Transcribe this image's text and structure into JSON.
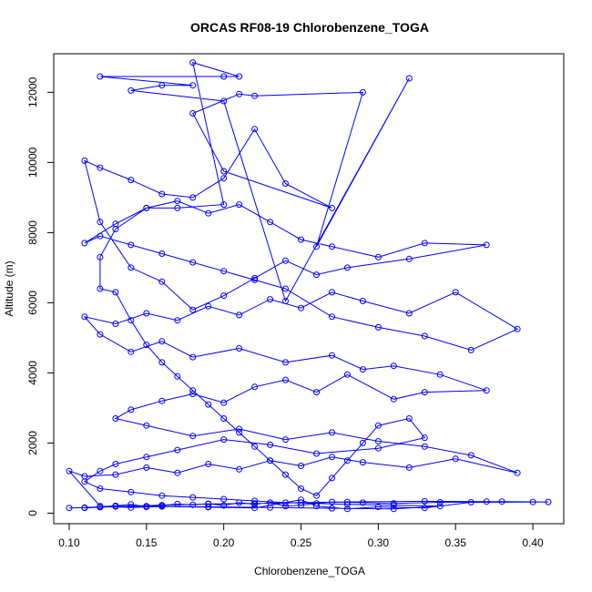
{
  "chart_data": {
    "type": "line",
    "title": "ORCAS RF08-19 Chlorobenzene_TOGA",
    "xlabel": "Chlorobenzene_TOGA",
    "ylabel": "Altitude (m)",
    "xlim": [
      0.09,
      0.42
    ],
    "ylim": [
      -300,
      13100
    ],
    "xticks": [
      "0.10",
      "0.15",
      "0.20",
      "0.25",
      "0.30",
      "0.35",
      "0.40"
    ],
    "yticks": [
      "0",
      "2000",
      "4000",
      "6000",
      "8000",
      "10000",
      "12000"
    ],
    "grid": false,
    "series_color": "#0000ff",
    "marker": "open-circle",
    "series": [
      {
        "points": [
          [
            0.1,
            150
          ],
          [
            0.11,
            160
          ],
          [
            0.12,
            180
          ],
          [
            0.13,
            210
          ],
          [
            0.14,
            250
          ],
          [
            0.15,
            180
          ],
          [
            0.16,
            220
          ],
          [
            0.17,
            260
          ],
          [
            0.18,
            240
          ],
          [
            0.19,
            270
          ],
          [
            0.2,
            220
          ],
          [
            0.21,
            300
          ],
          [
            0.22,
            250
          ],
          [
            0.23,
            300
          ],
          [
            0.24,
            200
          ],
          [
            0.25,
            230
          ],
          [
            0.27,
            320
          ],
          [
            0.29,
            300
          ],
          [
            0.31,
            280
          ],
          [
            0.34,
            310
          ],
          [
            0.38,
            330
          ],
          [
            0.41,
            320
          ],
          [
            0.36,
            310
          ],
          [
            0.33,
            150
          ],
          [
            0.3,
            180
          ],
          [
            0.28,
            120
          ],
          [
            0.26,
            200
          ],
          [
            0.25,
            380
          ],
          [
            0.22,
            150
          ],
          [
            0.19,
            170
          ],
          [
            0.16,
            190
          ],
          [
            0.14,
            160
          ],
          [
            0.12,
            200
          ],
          [
            0.1,
            1200
          ],
          [
            0.11,
            1050
          ],
          [
            0.13,
            1100
          ],
          [
            0.15,
            1300
          ],
          [
            0.17,
            1150
          ],
          [
            0.19,
            1400
          ],
          [
            0.21,
            1250
          ],
          [
            0.23,
            1500
          ],
          [
            0.25,
            1350
          ],
          [
            0.27,
            1600
          ],
          [
            0.29,
            1450
          ],
          [
            0.32,
            1300
          ],
          [
            0.35,
            1550
          ],
          [
            0.39,
            1150
          ],
          [
            0.36,
            1650
          ],
          [
            0.33,
            1900
          ],
          [
            0.3,
            2050
          ],
          [
            0.27,
            2300
          ],
          [
            0.24,
            2100
          ],
          [
            0.21,
            2400
          ],
          [
            0.18,
            2200
          ],
          [
            0.15,
            2500
          ],
          [
            0.13,
            2700
          ],
          [
            0.14,
            2950
          ],
          [
            0.16,
            3200
          ],
          [
            0.18,
            3400
          ],
          [
            0.2,
            3150
          ],
          [
            0.22,
            3600
          ],
          [
            0.24,
            3800
          ],
          [
            0.26,
            3450
          ],
          [
            0.28,
            3950
          ],
          [
            0.31,
            3250
          ],
          [
            0.33,
            3450
          ],
          [
            0.37,
            3500
          ],
          [
            0.34,
            3950
          ],
          [
            0.31,
            4200
          ],
          [
            0.29,
            4100
          ],
          [
            0.27,
            4500
          ],
          [
            0.24,
            4300
          ],
          [
            0.21,
            4700
          ],
          [
            0.18,
            4450
          ],
          [
            0.16,
            4900
          ],
          [
            0.14,
            4600
          ],
          [
            0.12,
            5100
          ],
          [
            0.11,
            5600
          ],
          [
            0.13,
            5400
          ],
          [
            0.15,
            5700
          ],
          [
            0.17,
            5500
          ],
          [
            0.19,
            5900
          ],
          [
            0.21,
            5650
          ],
          [
            0.23,
            6100
          ],
          [
            0.25,
            5850
          ],
          [
            0.27,
            6300
          ],
          [
            0.29,
            6050
          ],
          [
            0.32,
            5700
          ],
          [
            0.35,
            6300
          ],
          [
            0.39,
            5250
          ],
          [
            0.36,
            4650
          ],
          [
            0.33,
            5050
          ],
          [
            0.3,
            5300
          ],
          [
            0.27,
            5600
          ],
          [
            0.24,
            6400
          ],
          [
            0.22,
            6650
          ],
          [
            0.2,
            6900
          ],
          [
            0.18,
            7150
          ],
          [
            0.16,
            7400
          ],
          [
            0.14,
            7650
          ],
          [
            0.12,
            7900
          ],
          [
            0.11,
            7700
          ],
          [
            0.13,
            8250
          ],
          [
            0.15,
            8700
          ],
          [
            0.17,
            8900
          ],
          [
            0.19,
            8550
          ],
          [
            0.21,
            8800
          ],
          [
            0.23,
            8300
          ],
          [
            0.25,
            7800
          ],
          [
            0.27,
            7600
          ],
          [
            0.3,
            7300
          ],
          [
            0.33,
            7700
          ],
          [
            0.37,
            7650
          ],
          [
            0.32,
            7250
          ],
          [
            0.28,
            7000
          ],
          [
            0.26,
            6800
          ],
          [
            0.24,
            7200
          ],
          [
            0.22,
            6700
          ],
          [
            0.2,
            6200
          ],
          [
            0.18,
            5800
          ],
          [
            0.16,
            6600
          ],
          [
            0.14,
            7000
          ],
          [
            0.12,
            8300
          ],
          [
            0.11,
            10050
          ],
          [
            0.12,
            9850
          ],
          [
            0.14,
            9500
          ],
          [
            0.16,
            9100
          ],
          [
            0.18,
            9000
          ],
          [
            0.2,
            9550
          ],
          [
            0.22,
            10950
          ],
          [
            0.24,
            9400
          ],
          [
            0.27,
            8700
          ],
          [
            0.2,
            9750
          ],
          [
            0.18,
            11400
          ],
          [
            0.21,
            11950
          ],
          [
            0.22,
            11900
          ],
          [
            0.29,
            12000
          ],
          [
            0.26,
            7600
          ],
          [
            0.32,
            12400
          ],
          [
            0.24,
            6050
          ],
          [
            0.2,
            11750
          ],
          [
            0.14,
            12050
          ],
          [
            0.16,
            12200
          ],
          [
            0.18,
            12200
          ],
          [
            0.12,
            12450
          ],
          [
            0.2,
            12450
          ],
          [
            0.21,
            12450
          ],
          [
            0.18,
            12850
          ],
          [
            0.2,
            8800
          ],
          [
            0.17,
            8700
          ],
          [
            0.15,
            8700
          ],
          [
            0.13,
            8100
          ],
          [
            0.12,
            7300
          ],
          [
            0.12,
            6400
          ],
          [
            0.13,
            6300
          ],
          [
            0.14,
            5500
          ],
          [
            0.15,
            4800
          ],
          [
            0.16,
            4300
          ],
          [
            0.17,
            3900
          ],
          [
            0.18,
            3500
          ],
          [
            0.19,
            3100
          ],
          [
            0.2,
            2700
          ],
          [
            0.21,
            2300
          ],
          [
            0.22,
            1900
          ],
          [
            0.23,
            1500
          ],
          [
            0.24,
            1100
          ],
          [
            0.25,
            700
          ],
          [
            0.26,
            500
          ],
          [
            0.27,
            1000
          ],
          [
            0.28,
            1500
          ],
          [
            0.29,
            2000
          ],
          [
            0.3,
            2500
          ],
          [
            0.32,
            2700
          ],
          [
            0.33,
            2150
          ],
          [
            0.3,
            1850
          ],
          [
            0.26,
            1700
          ],
          [
            0.23,
            1950
          ],
          [
            0.2,
            2100
          ],
          [
            0.17,
            1800
          ],
          [
            0.15,
            1600
          ],
          [
            0.13,
            1400
          ],
          [
            0.12,
            1200
          ],
          [
            0.11,
            900
          ],
          [
            0.12,
            700
          ],
          [
            0.14,
            600
          ],
          [
            0.16,
            500
          ],
          [
            0.18,
            450
          ],
          [
            0.2,
            400
          ],
          [
            0.22,
            350
          ],
          [
            0.24,
            300
          ],
          [
            0.26,
            280
          ],
          [
            0.28,
            250
          ],
          [
            0.31,
            230
          ],
          [
            0.34,
            200
          ],
          [
            0.31,
            120
          ],
          [
            0.27,
            140
          ],
          [
            0.23,
            160
          ],
          [
            0.19,
            180
          ],
          [
            0.15,
            200
          ],
          [
            0.12,
            170
          ],
          [
            0.11,
            150
          ],
          [
            0.13,
            190
          ],
          [
            0.16,
            230
          ],
          [
            0.19,
            260
          ],
          [
            0.22,
            280
          ],
          [
            0.25,
            300
          ],
          [
            0.28,
            320
          ],
          [
            0.33,
            340
          ],
          [
            0.37,
            330
          ],
          [
            0.4,
            320
          ]
        ]
      }
    ]
  }
}
